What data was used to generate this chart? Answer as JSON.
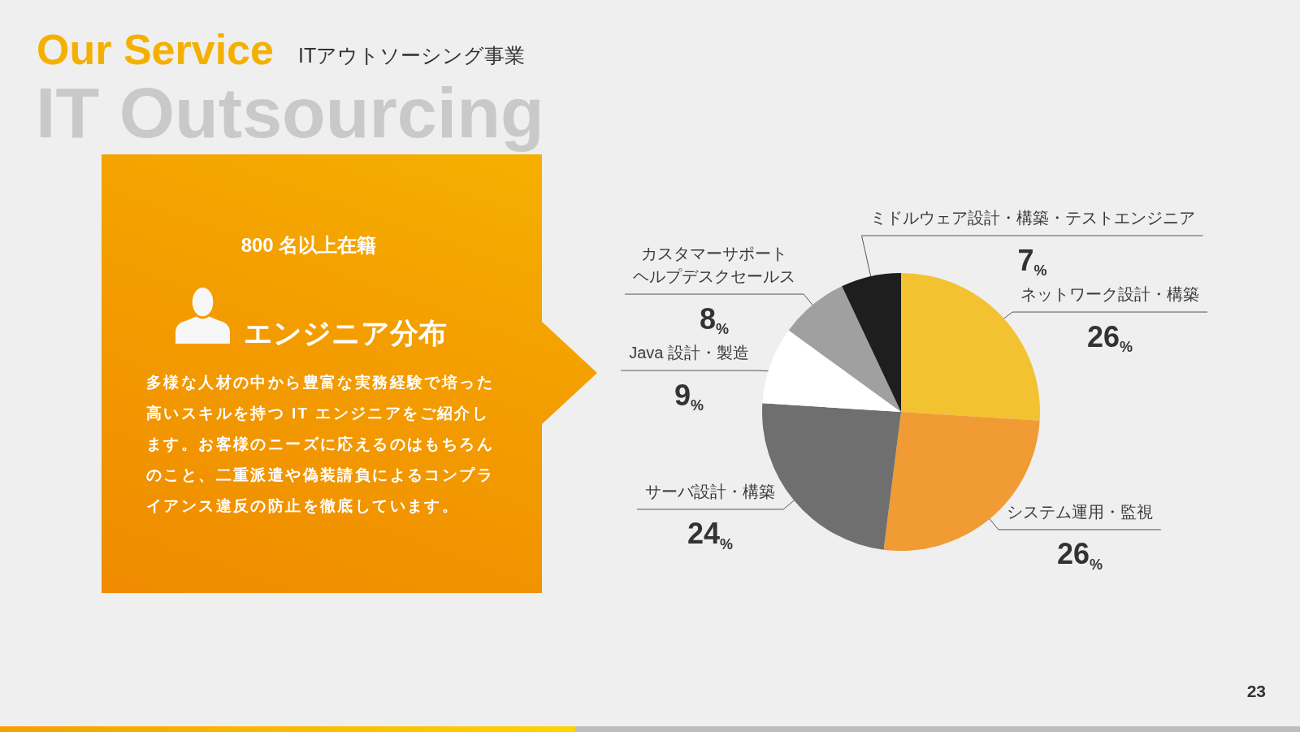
{
  "chart_data": {
    "type": "pie",
    "title": "Our Service",
    "subtitle": "ITアウトソーシング事業",
    "categories": [
      "ネットワーク設計・構築",
      "システム運用・監視",
      "サーバ設計・構築",
      "Java 設計・製造",
      "カスタマーサポートヘルプデスクセールス",
      "ミドルウェア設計・構築・テストエンジニア"
    ],
    "values": [
      26,
      26,
      24,
      9,
      8,
      7
    ],
    "colors": [
      "#f2c230",
      "#f09b33",
      "#6f6f6f",
      "#ffffff",
      "#a0a0a0",
      "#1e1e1e"
    ],
    "value_labels": [
      "26%",
      "26%",
      "24%",
      "9%",
      "8%",
      "7%"
    ],
    "annotations": [
      "IT Outsourcing",
      "800 名以上在籍",
      "エンジニア分布",
      "多様な人材の中から豊富な実務経験で培った高いスキルを持つ IT エンジニアをご紹介します。お客様のニーズに応えるのはもちろんのこと、二重派遣や偽装請負によるコンプライアンス違反の防止を徹底しています。",
      "23"
    ]
  }
}
